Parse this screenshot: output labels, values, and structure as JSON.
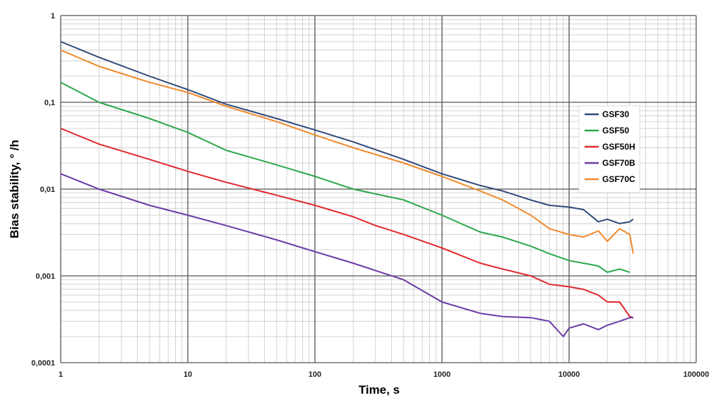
{
  "chart_data": {
    "type": "line",
    "xlabel": "Time, s",
    "ylabel": "Bias stability, °   /h",
    "x_scale": "log",
    "y_scale": "log",
    "xlim": [
      1,
      100000
    ],
    "ylim": [
      0.0001,
      1
    ],
    "x_ticks": [
      "1",
      "10",
      "100",
      "1000",
      "10000",
      "100000"
    ],
    "y_ticks": [
      "0,0001",
      "0,001",
      "0,01",
      "0,1",
      "1"
    ],
    "grid": true,
    "legend_position": "right",
    "series": [
      {
        "name": "GSF30",
        "color": "#2f4a7a",
        "x": [
          1,
          2,
          5,
          10,
          20,
          50,
          100,
          200,
          500,
          1000,
          2000,
          3000,
          5000,
          7000,
          10000,
          13000,
          17000,
          20000,
          25000,
          30000,
          32000
        ],
        "y": [
          0.5,
          0.33,
          0.2,
          0.14,
          0.095,
          0.065,
          0.048,
          0.035,
          0.022,
          0.015,
          0.011,
          0.0095,
          0.0075,
          0.0065,
          0.0062,
          0.0058,
          0.0042,
          0.0045,
          0.004,
          0.0042,
          0.0045
        ]
      },
      {
        "name": "GSF50",
        "color": "#2ea84a",
        "x": [
          1,
          2,
          5,
          10,
          20,
          50,
          100,
          200,
          500,
          1000,
          2000,
          3000,
          5000,
          7000,
          10000,
          13000,
          17000,
          20000,
          25000,
          30000
        ],
        "y": [
          0.17,
          0.1,
          0.065,
          0.045,
          0.028,
          0.019,
          0.014,
          0.01,
          0.0075,
          0.005,
          0.0032,
          0.0028,
          0.0022,
          0.0018,
          0.0015,
          0.0014,
          0.0013,
          0.0011,
          0.0012,
          0.0011
        ]
      },
      {
        "name": "GSF50H",
        "color": "#e0282c",
        "x": [
          1,
          2,
          5,
          10,
          20,
          50,
          100,
          200,
          300,
          500,
          1000,
          2000,
          3000,
          5000,
          7000,
          10000,
          13000,
          17000,
          20000,
          25000,
          30000,
          32000
        ],
        "y": [
          0.05,
          0.033,
          0.022,
          0.016,
          0.012,
          0.0085,
          0.0065,
          0.0048,
          0.0038,
          0.003,
          0.0021,
          0.0014,
          0.0012,
          0.001,
          0.0008,
          0.00075,
          0.0007,
          0.0006,
          0.0005,
          0.0005,
          0.00034,
          0.00033
        ]
      },
      {
        "name": "GSF70B",
        "color": "#6b3aa6",
        "x": [
          1,
          2,
          5,
          10,
          20,
          50,
          100,
          200,
          500,
          1000,
          2000,
          3000,
          5000,
          7000,
          9000,
          10000,
          13000,
          17000,
          20000,
          25000,
          30000,
          32000
        ],
        "y": [
          0.015,
          0.01,
          0.0065,
          0.005,
          0.0038,
          0.0026,
          0.0019,
          0.0014,
          0.0009,
          0.0005,
          0.00037,
          0.00034,
          0.00033,
          0.0003,
          0.0002,
          0.00025,
          0.00028,
          0.00024,
          0.00027,
          0.0003,
          0.00033,
          0.00033
        ]
      },
      {
        "name": "GSF70C",
        "color": "#f0892a",
        "x": [
          1,
          2,
          5,
          10,
          20,
          50,
          100,
          200,
          500,
          1000,
          2000,
          3000,
          5000,
          7000,
          10000,
          13000,
          17000,
          20000,
          25000,
          30000,
          32000
        ],
        "y": [
          0.4,
          0.26,
          0.17,
          0.13,
          0.09,
          0.06,
          0.042,
          0.03,
          0.02,
          0.014,
          0.0095,
          0.0075,
          0.005,
          0.0035,
          0.003,
          0.0028,
          0.0033,
          0.0025,
          0.0035,
          0.003,
          0.0018
        ]
      }
    ]
  }
}
